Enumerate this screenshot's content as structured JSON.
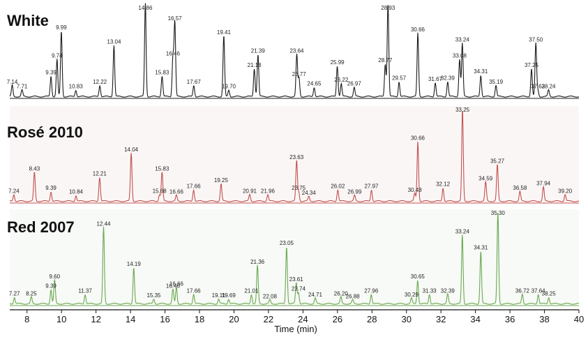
{
  "chart_data": {
    "type": "line",
    "xlabel": "Time (min)",
    "xlim": [
      7,
      40
    ],
    "x_ticks": [
      8,
      10,
      12,
      14,
      16,
      18,
      20,
      22,
      24,
      26,
      28,
      30,
      32,
      34,
      36,
      38,
      40
    ],
    "grid": false,
    "series": [
      {
        "name": "White",
        "color": "#1a1a1a",
        "peaks": [
          {
            "rt": 7.14,
            "label": "7.14",
            "h": 0.12
          },
          {
            "rt": 7.71,
            "label": "7.71",
            "h": 0.07
          },
          {
            "rt": 9.39,
            "label": "9.39",
            "h": 0.22
          },
          {
            "rt": 9.74,
            "label": "9.74",
            "h": 0.4
          },
          {
            "rt": 9.99,
            "label": "9.99",
            "h": 0.7
          },
          {
            "rt": 10.83,
            "label": "10.83",
            "h": 0.07
          },
          {
            "rt": 12.22,
            "label": "12.22",
            "h": 0.12
          },
          {
            "rt": 13.04,
            "label": "13.04",
            "h": 0.55
          },
          {
            "rt": 14.86,
            "label": "14.86",
            "h": 1.0
          },
          {
            "rt": 15.83,
            "label": "15.83",
            "h": 0.22
          },
          {
            "rt": 16.46,
            "label": "16.46",
            "h": 0.42
          },
          {
            "rt": 16.57,
            "label": "16.57",
            "h": 0.8
          },
          {
            "rt": 17.67,
            "label": "17.67",
            "h": 0.12
          },
          {
            "rt": 19.41,
            "label": "19.41",
            "h": 0.65
          },
          {
            "rt": 19.7,
            "label": "19.70",
            "h": 0.07
          },
          {
            "rt": 21.18,
            "label": "21.18",
            "h": 0.3
          },
          {
            "rt": 21.39,
            "label": "21.39",
            "h": 0.45
          },
          {
            "rt": 23.64,
            "label": "23.64",
            "h": 0.45
          },
          {
            "rt": 23.77,
            "label": "23.77",
            "h": 0.2
          },
          {
            "rt": 24.65,
            "label": "24.65",
            "h": 0.1
          },
          {
            "rt": 25.99,
            "label": "25.99",
            "h": 0.33
          },
          {
            "rt": 26.22,
            "label": "26.22",
            "h": 0.14
          },
          {
            "rt": 26.97,
            "label": "26.97",
            "h": 0.1
          },
          {
            "rt": 28.77,
            "label": "28.77",
            "h": 0.35
          },
          {
            "rt": 28.93,
            "label": "28.93",
            "h": 1.0
          },
          {
            "rt": 29.57,
            "label": "29.57",
            "h": 0.16
          },
          {
            "rt": 30.66,
            "label": "30.66",
            "h": 0.68
          },
          {
            "rt": 31.67,
            "label": "31.67",
            "h": 0.15
          },
          {
            "rt": 32.39,
            "label": "32.39",
            "h": 0.16
          },
          {
            "rt": 33.08,
            "label": "33.08",
            "h": 0.4
          },
          {
            "rt": 33.24,
            "label": "33.24",
            "h": 0.57
          },
          {
            "rt": 34.31,
            "label": "34.31",
            "h": 0.23
          },
          {
            "rt": 35.19,
            "label": "35.19",
            "h": 0.12
          },
          {
            "rt": 37.25,
            "label": "37.25",
            "h": 0.3
          },
          {
            "rt": 37.5,
            "label": "37.50",
            "h": 0.57
          },
          {
            "rt": 37.62,
            "label": "37.62",
            "h": 0.07
          },
          {
            "rt": 38.24,
            "label": "38.24",
            "h": 0.07
          }
        ]
      },
      {
        "name": "Rosé 2010",
        "color": "#c0504d",
        "peaks": [
          {
            "rt": 7.24,
            "label": "7.24",
            "h": 0.07
          },
          {
            "rt": 8.43,
            "label": "8.43",
            "h": 0.3
          },
          {
            "rt": 9.39,
            "label": "9.39",
            "h": 0.1
          },
          {
            "rt": 10.84,
            "label": "10.84",
            "h": 0.06
          },
          {
            "rt": 12.21,
            "label": "12.21",
            "h": 0.25
          },
          {
            "rt": 14.04,
            "label": "14.04",
            "h": 0.5
          },
          {
            "rt": 15.68,
            "label": "15.68",
            "h": 0.07
          },
          {
            "rt": 15.83,
            "label": "15.83",
            "h": 0.3
          },
          {
            "rt": 16.66,
            "label": "16.66",
            "h": 0.06
          },
          {
            "rt": 17.66,
            "label": "17.66",
            "h": 0.12
          },
          {
            "rt": 19.25,
            "label": "19.25",
            "h": 0.18
          },
          {
            "rt": 20.91,
            "label": "20.91",
            "h": 0.07
          },
          {
            "rt": 21.96,
            "label": "21.96",
            "h": 0.07
          },
          {
            "rt": 23.63,
            "label": "23.63",
            "h": 0.42
          },
          {
            "rt": 23.75,
            "label": "23.75",
            "h": 0.1
          },
          {
            "rt": 24.34,
            "label": "24.34",
            "h": 0.05
          },
          {
            "rt": 26.02,
            "label": "26.02",
            "h": 0.12
          },
          {
            "rt": 26.99,
            "label": "26.99",
            "h": 0.06
          },
          {
            "rt": 27.97,
            "label": "27.97",
            "h": 0.12
          },
          {
            "rt": 30.48,
            "label": "30.48",
            "h": 0.08
          },
          {
            "rt": 30.66,
            "label": "30.66",
            "h": 0.62
          },
          {
            "rt": 32.12,
            "label": "32.12",
            "h": 0.14
          },
          {
            "rt": 33.25,
            "label": "33.25",
            "h": 0.95
          },
          {
            "rt": 34.59,
            "label": "34.59",
            "h": 0.2
          },
          {
            "rt": 35.27,
            "label": "35.27",
            "h": 0.38
          },
          {
            "rt": 36.58,
            "label": "36.58",
            "h": 0.1
          },
          {
            "rt": 37.94,
            "label": "37.94",
            "h": 0.15
          },
          {
            "rt": 39.2,
            "label": "39.20",
            "h": 0.07
          }
        ]
      },
      {
        "name": "Red 2007",
        "color": "#6aa84f",
        "peaks": [
          {
            "rt": 7.27,
            "label": "7.27",
            "h": 0.07
          },
          {
            "rt": 8.25,
            "label": "8.25",
            "h": 0.07
          },
          {
            "rt": 9.39,
            "label": "9.39",
            "h": 0.15
          },
          {
            "rt": 9.6,
            "label": "9.60",
            "h": 0.25
          },
          {
            "rt": 11.37,
            "label": "11.37",
            "h": 0.1
          },
          {
            "rt": 12.44,
            "label": "12.44",
            "h": 0.8
          },
          {
            "rt": 14.19,
            "label": "14.19",
            "h": 0.38
          },
          {
            "rt": 15.35,
            "label": "15.35",
            "h": 0.05
          },
          {
            "rt": 16.46,
            "label": "16.46",
            "h": 0.15
          },
          {
            "rt": 16.66,
            "label": "16.66",
            "h": 0.17
          },
          {
            "rt": 17.66,
            "label": "17.66",
            "h": 0.1
          },
          {
            "rt": 19.11,
            "label": "19.11",
            "h": 0.05
          },
          {
            "rt": 19.69,
            "label": "19.69",
            "h": 0.05
          },
          {
            "rt": 21.01,
            "label": "21.01",
            "h": 0.1
          },
          {
            "rt": 21.36,
            "label": "21.36",
            "h": 0.4
          },
          {
            "rt": 22.08,
            "label": "22.08",
            "h": 0.04
          },
          {
            "rt": 23.05,
            "label": "23.05",
            "h": 0.6
          },
          {
            "rt": 23.61,
            "label": "23.61",
            "h": 0.22
          },
          {
            "rt": 23.74,
            "label": "23.74",
            "h": 0.12
          },
          {
            "rt": 24.71,
            "label": "24.71",
            "h": 0.06
          },
          {
            "rt": 26.2,
            "label": "26.20",
            "h": 0.07
          },
          {
            "rt": 26.88,
            "label": "26.88",
            "h": 0.04
          },
          {
            "rt": 27.96,
            "label": "27.96",
            "h": 0.1
          },
          {
            "rt": 30.29,
            "label": "30.29",
            "h": 0.06
          },
          {
            "rt": 30.65,
            "label": "30.65",
            "h": 0.25
          },
          {
            "rt": 31.33,
            "label": "31.33",
            "h": 0.1
          },
          {
            "rt": 32.39,
            "label": "32.39",
            "h": 0.1
          },
          {
            "rt": 33.24,
            "label": "33.24",
            "h": 0.72
          },
          {
            "rt": 34.31,
            "label": "34.31",
            "h": 0.55
          },
          {
            "rt": 35.3,
            "label": "35.30",
            "h": 0.95
          },
          {
            "rt": 36.72,
            "label": "36.72",
            "h": 0.1
          },
          {
            "rt": 37.64,
            "label": "37.64",
            "h": 0.1
          },
          {
            "rt": 38.25,
            "label": "38.25",
            "h": 0.07
          }
        ]
      }
    ]
  }
}
